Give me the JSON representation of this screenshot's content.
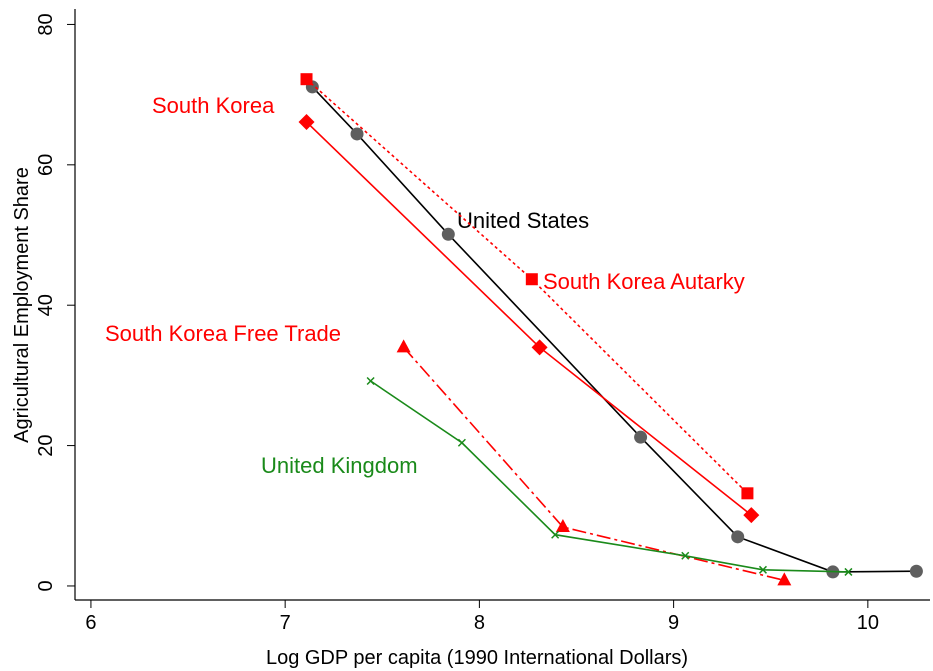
{
  "chart_data": {
    "type": "line",
    "xlabel": "Log GDP per capita (1990 International Dollars)",
    "ylabel": "Agricultural Employment Share",
    "xlim": [
      5.918,
      10.32
    ],
    "ylim": [
      -2,
      82.2
    ],
    "xticks": [
      6,
      7,
      8,
      9,
      10
    ],
    "yticks": [
      0,
      20,
      40,
      60,
      80
    ],
    "grid": false,
    "series": [
      {
        "name": "United States",
        "color": "#000000",
        "marker": "circle",
        "marker_color": "#5f5f5f",
        "dash": "solid",
        "x": [
          7.14,
          7.37,
          7.84,
          8.83,
          9.33,
          9.82,
          10.25
        ],
        "values": [
          71.1,
          64.4,
          50.1,
          21.2,
          7,
          2,
          2.1
        ]
      },
      {
        "name": "South Korea",
        "color": "#ff0000",
        "marker": "diamond",
        "marker_color": "#ff0000",
        "dash": "solid",
        "x": [
          7.11,
          8.31,
          9.4
        ],
        "values": [
          66.1,
          34,
          10.1
        ]
      },
      {
        "name": "South Korea Autarky",
        "color": "#ff0000",
        "marker": "square",
        "marker_color": "#ff0000",
        "dash": "dot",
        "x": [
          7.11,
          8.27,
          9.38
        ],
        "values": [
          72.2,
          43.7,
          13.2
        ]
      },
      {
        "name": "South Korea Free Trade",
        "color": "#ff0000",
        "marker": "triangle",
        "marker_color": "#ff0000",
        "dash": "dashdot",
        "x": [
          7.61,
          8.43,
          9.57
        ],
        "values": [
          34,
          8.4,
          0.8
        ]
      },
      {
        "name": "United Kingdom",
        "color": "#1a8a1a",
        "marker": "x",
        "marker_color": "#1a8a1a",
        "dash": "solid",
        "x": [
          7.44,
          7.91,
          8.39,
          9.06,
          9.46,
          9.9
        ],
        "values": [
          29.2,
          20.4,
          7.3,
          4.3,
          2.3,
          2
        ]
      }
    ]
  }
}
